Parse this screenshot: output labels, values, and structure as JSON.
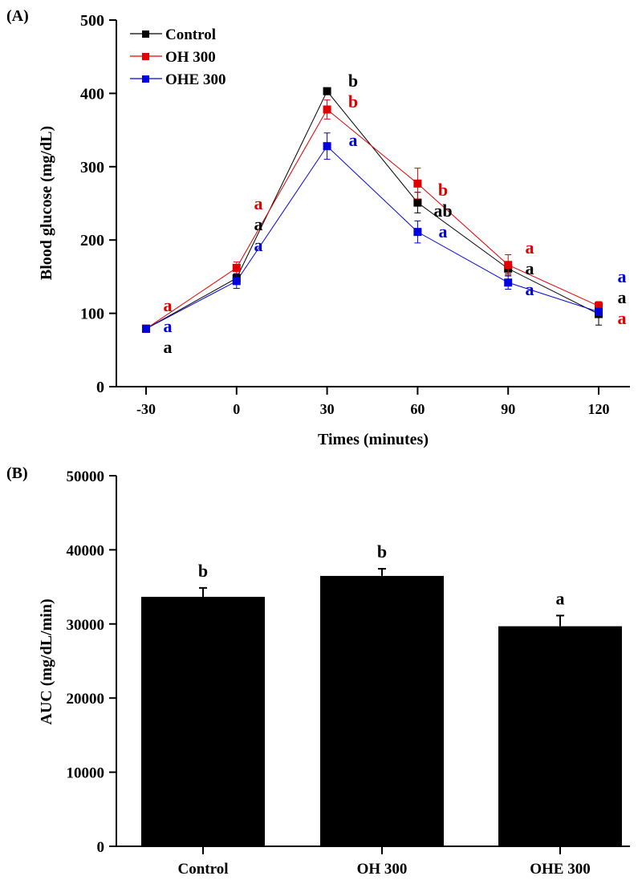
{
  "chart_data": [
    {
      "type": "line",
      "panel_label": "(A)",
      "xlabel": "Times (minutes)",
      "ylabel": "Blood glucose (mg/dL)",
      "x": [
        -30,
        0,
        30,
        60,
        90,
        120
      ],
      "x_ticks": [
        "-30",
        "0",
        "30",
        "60",
        "90",
        "120"
      ],
      "ylim": [
        0,
        500
      ],
      "y_ticks": [
        "0",
        "100",
        "200",
        "300",
        "400",
        "500"
      ],
      "grid": false,
      "legend_position": "top-left",
      "series": [
        {
          "name": "Control",
          "color": "#000000",
          "values": [
            79,
            148,
            403,
            251,
            161,
            99
          ],
          "errors": [
            2,
            6,
            3,
            14,
            7,
            15
          ],
          "labels": [
            "a",
            "a",
            "b",
            "ab",
            "a",
            "a"
          ]
        },
        {
          "name": "OH 300",
          "color": "#e00000",
          "values": [
            79,
            162,
            378,
            277,
            166,
            110
          ],
          "errors": [
            2,
            8,
            13,
            21,
            14,
            6
          ],
          "labels": [
            "a",
            "a",
            "b",
            "b",
            "a",
            "a"
          ]
        },
        {
          "name": "OHE 300",
          "color": "#0000dd",
          "values": [
            79,
            144,
            328,
            211,
            142,
            102
          ],
          "errors": [
            2,
            10,
            18,
            15,
            9,
            5
          ],
          "labels": [
            "a",
            "a",
            "a",
            "a",
            "a",
            "a"
          ]
        }
      ]
    },
    {
      "type": "bar",
      "panel_label": "(B)",
      "xlabel": "",
      "ylabel": "AUC (mg/dL/min)",
      "categories": [
        "Control",
        "OH 300",
        "OHE 300"
      ],
      "values": [
        33660,
        36480,
        29690
      ],
      "errors": [
        1200,
        970,
        1440
      ],
      "labels": [
        "b",
        "b",
        "a"
      ],
      "ylim": [
        0,
        50000
      ],
      "y_ticks": [
        "0",
        "10000",
        "20000",
        "30000",
        "40000",
        "50000"
      ],
      "bar_color": "#000000",
      "grid": false
    }
  ]
}
